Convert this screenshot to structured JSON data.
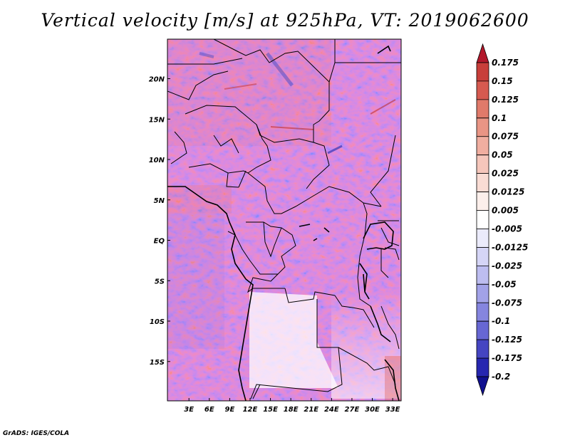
{
  "title": "Vertical velocity [m/s] at 925hPa, VT: 2019062600",
  "credit": "GrADS: IGES/COLA",
  "map": {
    "lon_range": [
      0,
      35
    ],
    "lat_range": [
      -20,
      25
    ],
    "lon_ticks": [
      {
        "value": 3,
        "label": "3E"
      },
      {
        "value": 6,
        "label": "6E"
      },
      {
        "value": 9,
        "label": "9E"
      },
      {
        "value": 12,
        "label": "12E"
      },
      {
        "value": 15,
        "label": "15E"
      },
      {
        "value": 18,
        "label": "18E"
      },
      {
        "value": 21,
        "label": "21E"
      },
      {
        "value": 24,
        "label": "24E"
      },
      {
        "value": 27,
        "label": "27E"
      },
      {
        "value": 30,
        "label": "30E"
      },
      {
        "value": 33,
        "label": "33E"
      }
    ],
    "lat_ticks": [
      {
        "value": 20,
        "label": "20N"
      },
      {
        "value": 15,
        "label": "15N"
      },
      {
        "value": 10,
        "label": "10N"
      },
      {
        "value": 5,
        "label": "5N"
      },
      {
        "value": 0,
        "label": "EQ"
      },
      {
        "value": -5,
        "label": "5S"
      },
      {
        "value": -10,
        "label": "10S"
      },
      {
        "value": -15,
        "label": "15S"
      }
    ]
  },
  "colorbar": {
    "labels": [
      "0.175",
      "0.15",
      "0.125",
      "0.1",
      "0.075",
      "0.05",
      "0.025",
      "0.0125",
      "0.005",
      "-0.005",
      "-0.0125",
      "-0.025",
      "-0.05",
      "-0.075",
      "-0.1",
      "-0.125",
      "-0.175",
      "-0.2"
    ],
    "colors": [
      "#b2182b",
      "#c83e3a",
      "#d65a50",
      "#e07a6a",
      "#e99585",
      "#f0aea0",
      "#f5c6bb",
      "#f9dcd4",
      "#fcefeb",
      "#ffffff",
      "#ebebfb",
      "#d5d5f6",
      "#bdbdf0",
      "#a2a2e8",
      "#8585df",
      "#6767d3",
      "#4545c2",
      "#2626b0",
      "#10108f"
    ]
  }
}
